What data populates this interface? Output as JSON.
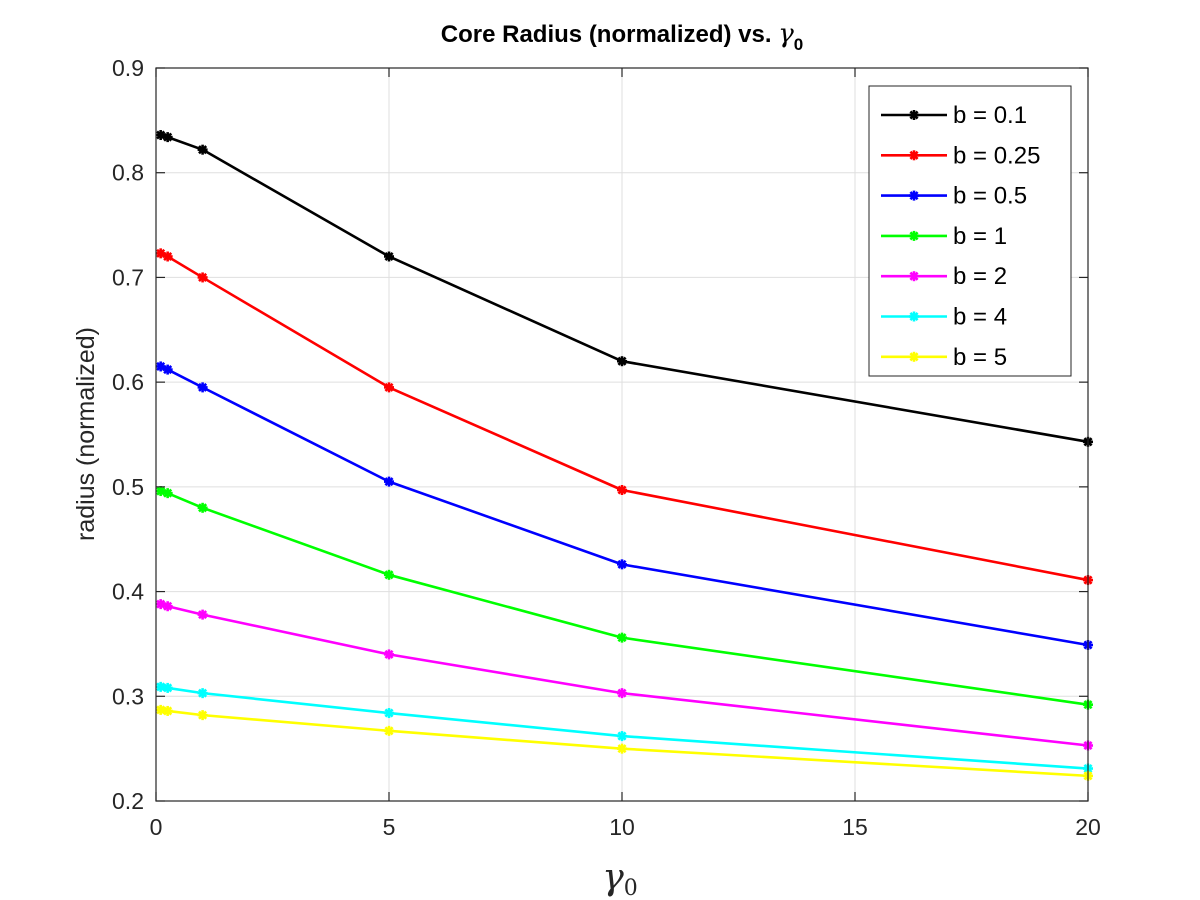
{
  "chart_data": {
    "type": "line",
    "title_prefix": "Core Radius (normalized) vs. ",
    "title_symbol": "γ",
    "title_subscript": "0",
    "xlabel_symbol": "γ",
    "xlabel_subscript": "0",
    "ylabel": "radius (normalized)",
    "xlim": [
      0,
      20
    ],
    "ylim": [
      0.2,
      0.9
    ],
    "xticks": [
      0,
      5,
      10,
      15,
      20
    ],
    "xtick_labels": [
      "0",
      "5",
      "10",
      "15",
      "20"
    ],
    "yticks": [
      0.2,
      0.3,
      0.4,
      0.5,
      0.6,
      0.7,
      0.8,
      0.9
    ],
    "ytick_labels": [
      "0.2",
      "0.3",
      "0.4",
      "0.5",
      "0.6",
      "0.7",
      "0.8",
      "0.9"
    ],
    "grid": true,
    "legend_position": "top-right",
    "x": [
      0.1,
      0.25,
      1,
      5,
      10,
      20
    ],
    "series": [
      {
        "name": "b = 0.1",
        "color": "#000000",
        "values": [
          0.836,
          0.834,
          0.822,
          0.72,
          0.62,
          0.543
        ]
      },
      {
        "name": "b = 0.25",
        "color": "#ff0000",
        "values": [
          0.723,
          0.72,
          0.7,
          0.595,
          0.497,
          0.411
        ]
      },
      {
        "name": "b = 0.5",
        "color": "#0000ff",
        "values": [
          0.615,
          0.612,
          0.595,
          0.505,
          0.426,
          0.349
        ]
      },
      {
        "name": "b = 1",
        "color": "#00ff00",
        "values": [
          0.496,
          0.494,
          0.48,
          0.416,
          0.356,
          0.292
        ]
      },
      {
        "name": "b = 2",
        "color": "#ff00ff",
        "values": [
          0.388,
          0.386,
          0.378,
          0.34,
          0.303,
          0.253
        ]
      },
      {
        "name": "b = 4",
        "color": "#00ffff",
        "values": [
          0.309,
          0.308,
          0.303,
          0.284,
          0.262,
          0.231
        ]
      },
      {
        "name": "b = 5",
        "color": "#ffff00",
        "values": [
          0.287,
          0.286,
          0.282,
          0.267,
          0.25,
          0.224
        ]
      }
    ]
  }
}
